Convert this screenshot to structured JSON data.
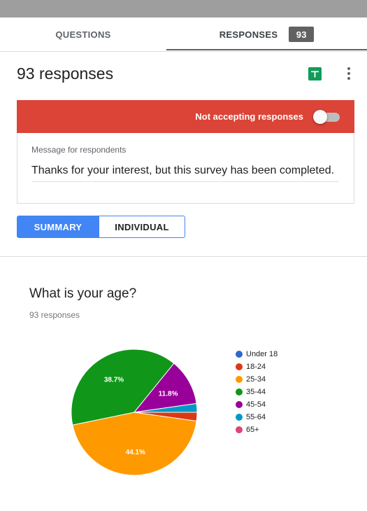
{
  "tabs": {
    "questions_label": "QUESTIONS",
    "responses_label": "RESPONSES",
    "responses_count": "93"
  },
  "header": {
    "title": "93 responses",
    "sheets_icon": "google-sheets-icon",
    "more_icon": "more-vert-icon"
  },
  "banner": {
    "label": "Not accepting responses",
    "accepting": false,
    "color": "#db4437"
  },
  "message": {
    "label": "Message for respondents",
    "value": "Thanks for your interest, but this survey has been completed."
  },
  "view_toggle": {
    "summary_label": "SUMMARY",
    "individual_label": "INDIVIDUAL",
    "selected": "SUMMARY"
  },
  "question": {
    "title": "What is your age?",
    "responses_text": "93 responses"
  },
  "chart_data": {
    "type": "pie",
    "categories": [
      "Under 18",
      "18-24",
      "25-34",
      "35-44",
      "45-54",
      "55-64",
      "65+"
    ],
    "values": [
      0,
      2.2,
      44.1,
      38.7,
      11.8,
      2.2,
      0
    ],
    "colors": [
      "#3366cc",
      "#dc3912",
      "#ff9900",
      "#109618",
      "#990099",
      "#0099c6",
      "#dd4477"
    ],
    "slice_labels": [
      "",
      "",
      "44.1%",
      "38.7%",
      "11.8%",
      "",
      ""
    ],
    "legend_position": "right"
  }
}
